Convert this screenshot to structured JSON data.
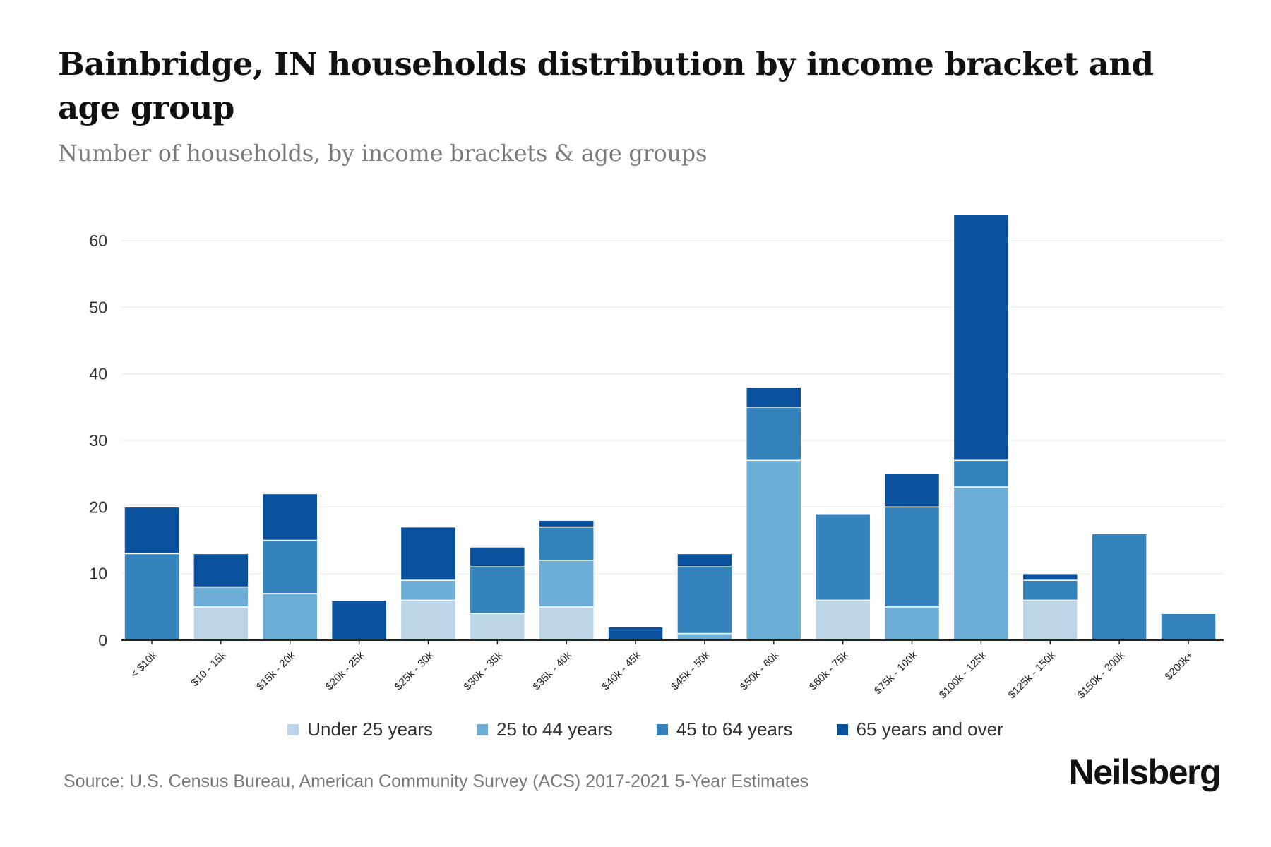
{
  "header": {
    "title": "Bainbridge, IN households distribution by income bracket and age group",
    "subtitle": "Number of households, by income brackets & age groups"
  },
  "footer": {
    "source": "Source: U.S. Census Bureau, American Community Survey (ACS) 2017-2021 5-Year Estimates",
    "brand": "Neilsberg"
  },
  "chart_data": {
    "type": "bar",
    "stacked": true,
    "title": "Bainbridge, IN households distribution by income bracket and age group",
    "subtitle": "Number of households, by income brackets & age groups",
    "xlabel": "",
    "ylabel": "",
    "ylim": [
      0,
      65
    ],
    "yticks": [
      0,
      10,
      20,
      30,
      40,
      50,
      60
    ],
    "grid": true,
    "legend_position": "bottom-center",
    "categories": [
      "< $10k",
      "$10 - 15k",
      "$15k - 20k",
      "$20k - 25k",
      "$25k - 30k",
      "$30k - 35k",
      "$35k - 40k",
      "$40k - 45k",
      "$45k - 50k",
      "$50k - 60k",
      "$60k - 75k",
      "$75k - 100k",
      "$100k - 125k",
      "$125k - 150k",
      "$150k - 200k",
      "$200k+"
    ],
    "series": [
      {
        "name": "Under 25 years",
        "color": "#bcd6e7",
        "values": [
          0,
          5,
          0,
          0,
          6,
          4,
          5,
          0,
          0,
          0,
          6,
          0,
          0,
          6,
          0,
          0
        ]
      },
      {
        "name": "25 to 44 years",
        "color": "#6daed6",
        "values": [
          0,
          3,
          7,
          0,
          3,
          0,
          7,
          0,
          1,
          27,
          0,
          5,
          23,
          0,
          0,
          0
        ]
      },
      {
        "name": "45 to 64 years",
        "color": "#3483bd",
        "values": [
          13,
          0,
          8,
          0,
          0,
          7,
          5,
          0,
          10,
          8,
          13,
          15,
          4,
          3,
          16,
          4
        ]
      },
      {
        "name": "65 years and over",
        "color": "#0a519d",
        "values": [
          7,
          5,
          7,
          6,
          8,
          3,
          1,
          2,
          2,
          3,
          0,
          5,
          37,
          1,
          0,
          0
        ]
      }
    ]
  }
}
